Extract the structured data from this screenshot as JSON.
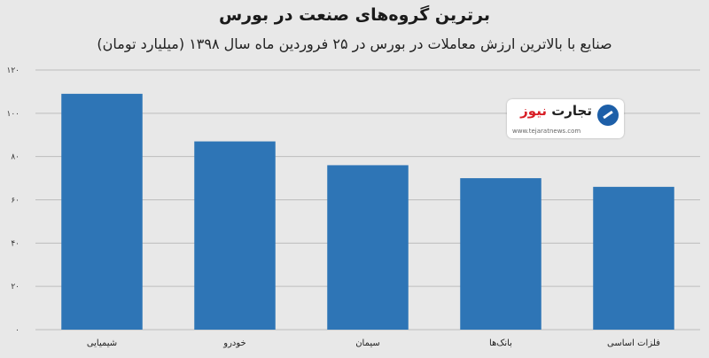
{
  "chart_data": {
    "type": "bar",
    "title": "برترین گروه‌های صنعت در بورس",
    "subtitle": "صنایع با بالاترین ارزش معاملات در بورس در ۲۵ فروردین ماه سال ۱۳۹۸ (میلیارد تومان)",
    "categories": [
      "شیمیایی",
      "خودرو",
      "سیمان",
      "بانک‌ها",
      "فلزات اساسی"
    ],
    "values": [
      109,
      87,
      76,
      70,
      66
    ],
    "ylim": [
      0,
      120
    ],
    "yticks": [
      0,
      20,
      40,
      60,
      80,
      100,
      120
    ],
    "ytick_labels": [
      "۰",
      "۲۰",
      "۴۰",
      "۶۰",
      "۸۰",
      "۱۰۰",
      "۱۲۰"
    ],
    "grid": true,
    "bar_color": "#2e75b6",
    "grid_color": "#bdbdbd"
  },
  "logo": {
    "name_part1": "تجارت",
    "name_part2": "نیوز",
    "url": "www.tejaratnews.com",
    "brand_color": "#1d5fa8",
    "accent_color": "#d81f26"
  }
}
